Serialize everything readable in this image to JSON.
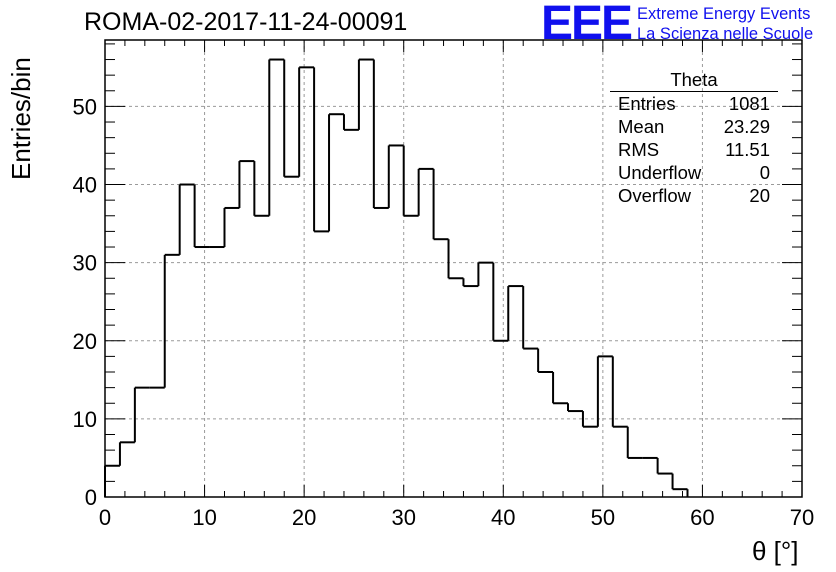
{
  "title": "ROMA-02-2017-11-24-00091",
  "logo": {
    "mark": "EEE",
    "line1": "Extreme Energy Events",
    "line2": "La Scienza nelle Scuole",
    "color": "#1010ee"
  },
  "stats": {
    "title": "Theta",
    "rows": [
      {
        "label": "Entries",
        "value": "1081"
      },
      {
        "label": "Mean",
        "value": "23.29"
      },
      {
        "label": "RMS",
        "value": "11.51"
      },
      {
        "label": "Underflow",
        "value": "0"
      },
      {
        "label": "Overflow",
        "value": "20"
      }
    ]
  },
  "chart_data": {
    "type": "bar",
    "style": "step-histogram",
    "title": "ROMA-02-2017-11-24-00091",
    "xlabel": "θ [°]",
    "ylabel": "Entries/bin",
    "xlim": [
      0,
      70
    ],
    "ylim": [
      0,
      58.5
    ],
    "xticks": [
      0,
      10,
      20,
      30,
      40,
      50,
      60,
      70
    ],
    "yticks": [
      0,
      10,
      20,
      30,
      40,
      50
    ],
    "grid": true,
    "bin_width": 1.5,
    "bin_start": 0,
    "values": [
      4,
      7,
      14,
      14,
      31,
      40,
      32,
      32,
      37,
      43,
      36,
      56,
      41,
      55,
      34,
      49,
      47,
      56,
      37,
      45,
      36,
      42,
      33,
      28,
      27,
      30,
      20,
      27,
      19,
      16,
      12,
      11,
      9,
      18,
      9,
      5,
      5,
      3,
      1,
      0,
      0,
      0,
      0,
      0,
      0,
      0
    ]
  }
}
